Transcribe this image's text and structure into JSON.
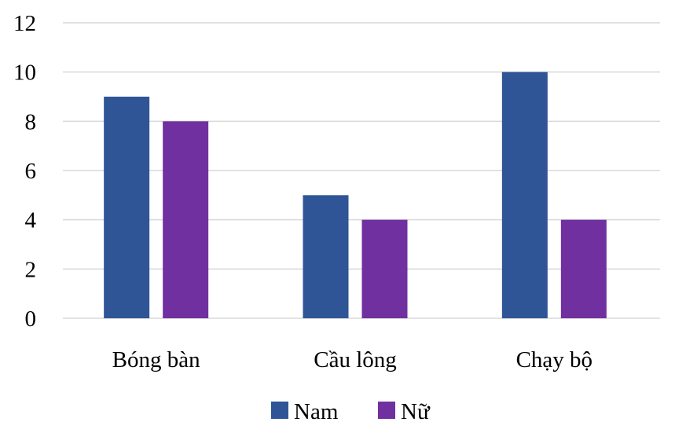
{
  "chart_data": {
    "type": "bar",
    "categories": [
      "Bóng bàn",
      "Cầu lông",
      "Chạy bộ"
    ],
    "series": [
      {
        "name": "Nam",
        "values": [
          9,
          5,
          10
        ],
        "color": "#2f5597"
      },
      {
        "name": "Nữ",
        "values": [
          8,
          4,
          4
        ],
        "color": "#7030a0"
      }
    ],
    "ylim": [
      0,
      12
    ],
    "yticks": [
      0,
      2,
      4,
      6,
      8,
      10,
      12
    ],
    "grid": true,
    "legend": "bottom"
  }
}
